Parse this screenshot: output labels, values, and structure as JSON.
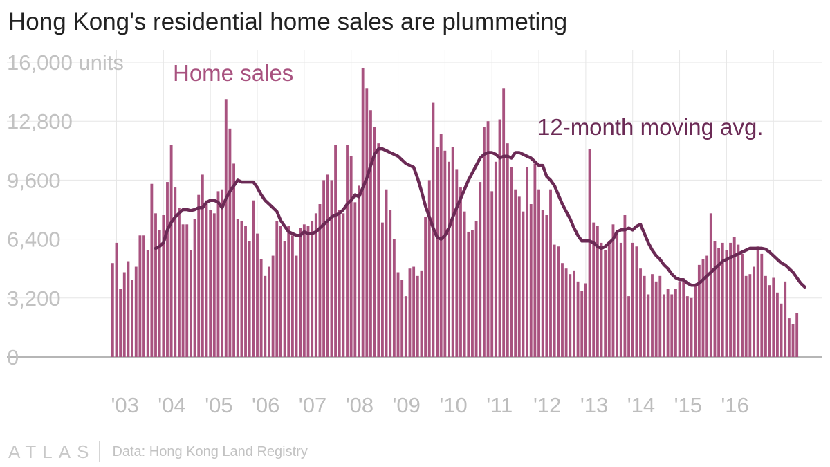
{
  "title": "Hong Kong's residential home sales are plummeting",
  "footer": {
    "logo": "ATLAS",
    "source": "Data: Hong Kong Land Registry"
  },
  "colors": {
    "bar": "#a8527f",
    "line": "#6b2a55",
    "grid": "#e6e6e6",
    "axis": "#9e9e9e",
    "bar_label": "#a8527f",
    "line_label": "#6b2a55"
  },
  "chart_data": {
    "type": "bar",
    "title": "Hong Kong's residential home sales are plummeting",
    "ylim": [
      0,
      16000
    ],
    "y_ticks": [
      0,
      3200,
      6400,
      9600,
      12800,
      16000
    ],
    "y_tick_labels": [
      "0",
      "3,200",
      "6,400",
      "9,600",
      "12,800",
      "16,000 units"
    ],
    "x_tick_labels": [
      "'03",
      "'04",
      "'05",
      "'06",
      "'07",
      "'08",
      "'09",
      "'10",
      "'11",
      "'12",
      "'13",
      "'14",
      "'15",
      "'16"
    ],
    "start": "2002-12",
    "series": [
      {
        "name": "Home sales",
        "type": "bar",
        "values": [
          5100,
          6200,
          3700,
          4600,
          5200,
          4200,
          4900,
          6600,
          6600,
          5800,
          9400,
          7800,
          6900,
          7700,
          9500,
          11500,
          9200,
          8100,
          7200,
          7200,
          5800,
          7500,
          8800,
          9900,
          8500,
          8000,
          7800,
          9000,
          9100,
          14000,
          12400,
          10500,
          7500,
          7400,
          7100,
          6300,
          8500,
          6700,
          5300,
          4400,
          4900,
          5500,
          7400,
          7100,
          6300,
          7100,
          6600,
          5500,
          7000,
          7200,
          7100,
          7400,
          7800,
          8300,
          9600,
          9900,
          9600,
          11500,
          8000,
          7800,
          11500,
          10900,
          8400,
          9300,
          15700,
          14600,
          13400,
          12500,
          11600,
          7300,
          9100,
          8000,
          6400,
          4600,
          4200,
          3300,
          4800,
          4900,
          4400,
          4700,
          7600,
          9600,
          13800,
          11400,
          12100,
          11200,
          10600,
          11400,
          10200,
          9200,
          7900,
          6800,
          6900,
          7400,
          9500,
          12500,
          12800,
          9000,
          10600,
          12900,
          14600,
          11600,
          10300,
          9100,
          8700,
          7900,
          10300,
          8300,
          10500,
          9100,
          8000,
          7700,
          9100,
          6100,
          6000,
          5100,
          4800,
          4500,
          4700,
          4100,
          3600,
          4000,
          11300,
          7300,
          7100,
          6200,
          5800,
          6200,
          7200,
          6700,
          6200,
          7700,
          3300,
          6200,
          6000,
          4800,
          4400,
          3400,
          4500,
          4100,
          4400,
          3400,
          3700,
          3400,
          3700,
          4100,
          4200,
          3300,
          3200,
          3900,
          5000,
          5300,
          5500,
          7800,
          6300,
          5900,
          6200,
          5800,
          6200,
          6500,
          6100,
          5600,
          4400,
          4500,
          4900,
          6000,
          5600,
          4400,
          3900,
          4300,
          3500,
          2900,
          4100,
          2100,
          1800,
          2400
        ]
      },
      {
        "name": "12-month moving avg.",
        "type": "line",
        "values": [
          null,
          null,
          null,
          null,
          null,
          null,
          null,
          null,
          null,
          null,
          null,
          5900,
          6000,
          6200,
          6900,
          7300,
          7600,
          7800,
          8000,
          8000,
          7950,
          8000,
          8100,
          8100,
          8400,
          8500,
          8500,
          8400,
          8100,
          8600,
          9000,
          9300,
          9600,
          9500,
          9500,
          9500,
          9500,
          9200,
          8800,
          8500,
          8300,
          8100,
          7900,
          7400,
          7100,
          6800,
          6700,
          6600,
          6600,
          6800,
          6700,
          6700,
          6800,
          7000,
          7200,
          7400,
          7600,
          7700,
          7800,
          8000,
          8300,
          8500,
          8800,
          8700,
          9200,
          9700,
          10400,
          11000,
          11300,
          11300,
          11200,
          11100,
          11000,
          10900,
          10700,
          10500,
          10400,
          10300,
          9700,
          9000,
          8200,
          7600,
          7000,
          6500,
          6400,
          6600,
          7000,
          7600,
          8100,
          8600,
          9100,
          9600,
          10000,
          10400,
          10800,
          11000,
          11100,
          11100,
          11000,
          10800,
          10900,
          10900,
          10800,
          11100,
          11100,
          11000,
          10900,
          10800,
          10600,
          10400,
          10400,
          9800,
          9600,
          9300,
          8800,
          8300,
          7900,
          7500,
          7000,
          6600,
          6300,
          6300,
          6300,
          6200,
          6000,
          5900,
          6000,
          6200,
          6400,
          6800,
          6900,
          6900,
          7000,
          6900,
          7100,
          7200,
          6700,
          6200,
          5800,
          5500,
          5300,
          5000,
          4800,
          4500,
          4300,
          4200,
          4200,
          4000,
          3900,
          3900,
          4000,
          4200,
          4400,
          4600,
          4800,
          5000,
          5200,
          5300,
          5400,
          5500,
          5600,
          5700,
          5800,
          5900,
          5900,
          5900,
          5900,
          5850,
          5700,
          5500,
          5300,
          5100,
          5000,
          4800,
          4600,
          4300,
          4000,
          3800
        ]
      }
    ],
    "annotations": [
      "Home sales",
      "12-month moving avg."
    ]
  }
}
